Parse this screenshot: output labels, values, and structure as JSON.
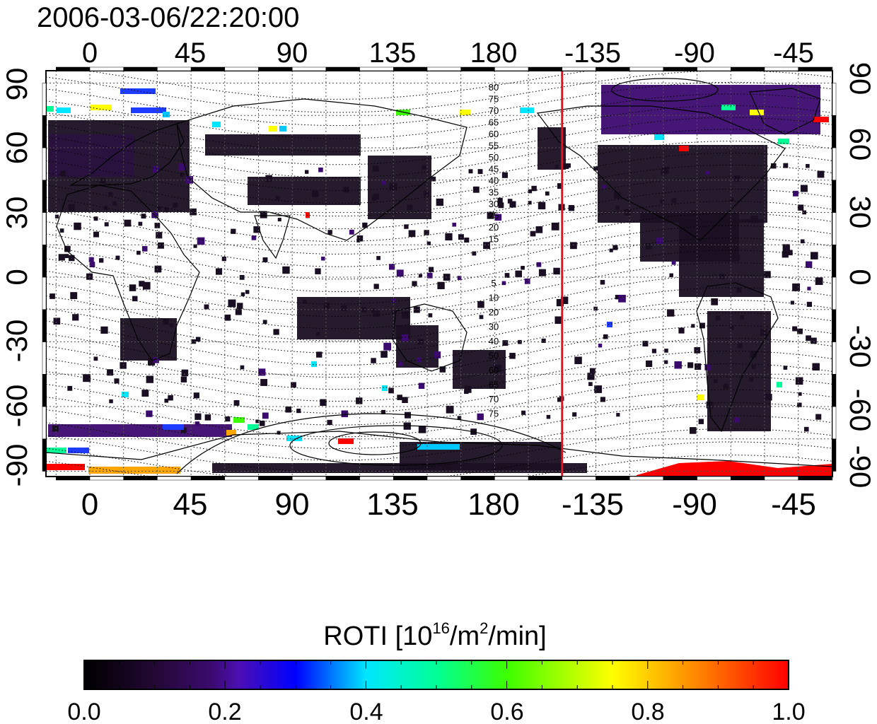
{
  "header": {
    "timestamp": "2006-03-06/22:20:00"
  },
  "map": {
    "top_lon_labels": [
      "0",
      "45",
      "90",
      "135",
      "180",
      "-135",
      "-90",
      "-45"
    ],
    "bottom_lon_labels": [
      "0",
      "45",
      "90",
      "135",
      "180",
      "-135",
      "-90",
      "-45"
    ],
    "left_lat_labels": [
      "90",
      "60",
      "30",
      "0",
      "-30",
      "-60",
      "-90"
    ],
    "right_lat_labels": [
      "90",
      "60",
      "30",
      "0",
      "-30",
      "-60",
      "-90"
    ],
    "terminator_lon": -150,
    "terminator_color": "#e0141e",
    "contour_labels_upper": [
      "80",
      "75",
      "70",
      "65",
      "60",
      "55",
      "50",
      "45",
      "40",
      "35",
      "30",
      "25",
      "20",
      "15"
    ],
    "contour_labels_lower": [
      "5",
      "10",
      "20",
      "30",
      "40",
      "50",
      "60",
      "65",
      "70",
      "75"
    ]
  },
  "colorbar": {
    "title_prefix": "ROTI  [10",
    "title_exp": "16",
    "title_mid": "/m",
    "title_exp2": "2",
    "title_suffix": "/min]",
    "tick_labels": [
      "0.0",
      "0.2",
      "0.4",
      "0.6",
      "0.8",
      "1.0"
    ],
    "range": [
      0,
      1.0
    ],
    "colors": [
      "#000000",
      "#3b0a6e",
      "#4b0fb4",
      "#0000ff",
      "#00c8ff",
      "#00ff96",
      "#3cff00",
      "#ffff00",
      "#ff8c00",
      "#ff0000"
    ]
  }
}
